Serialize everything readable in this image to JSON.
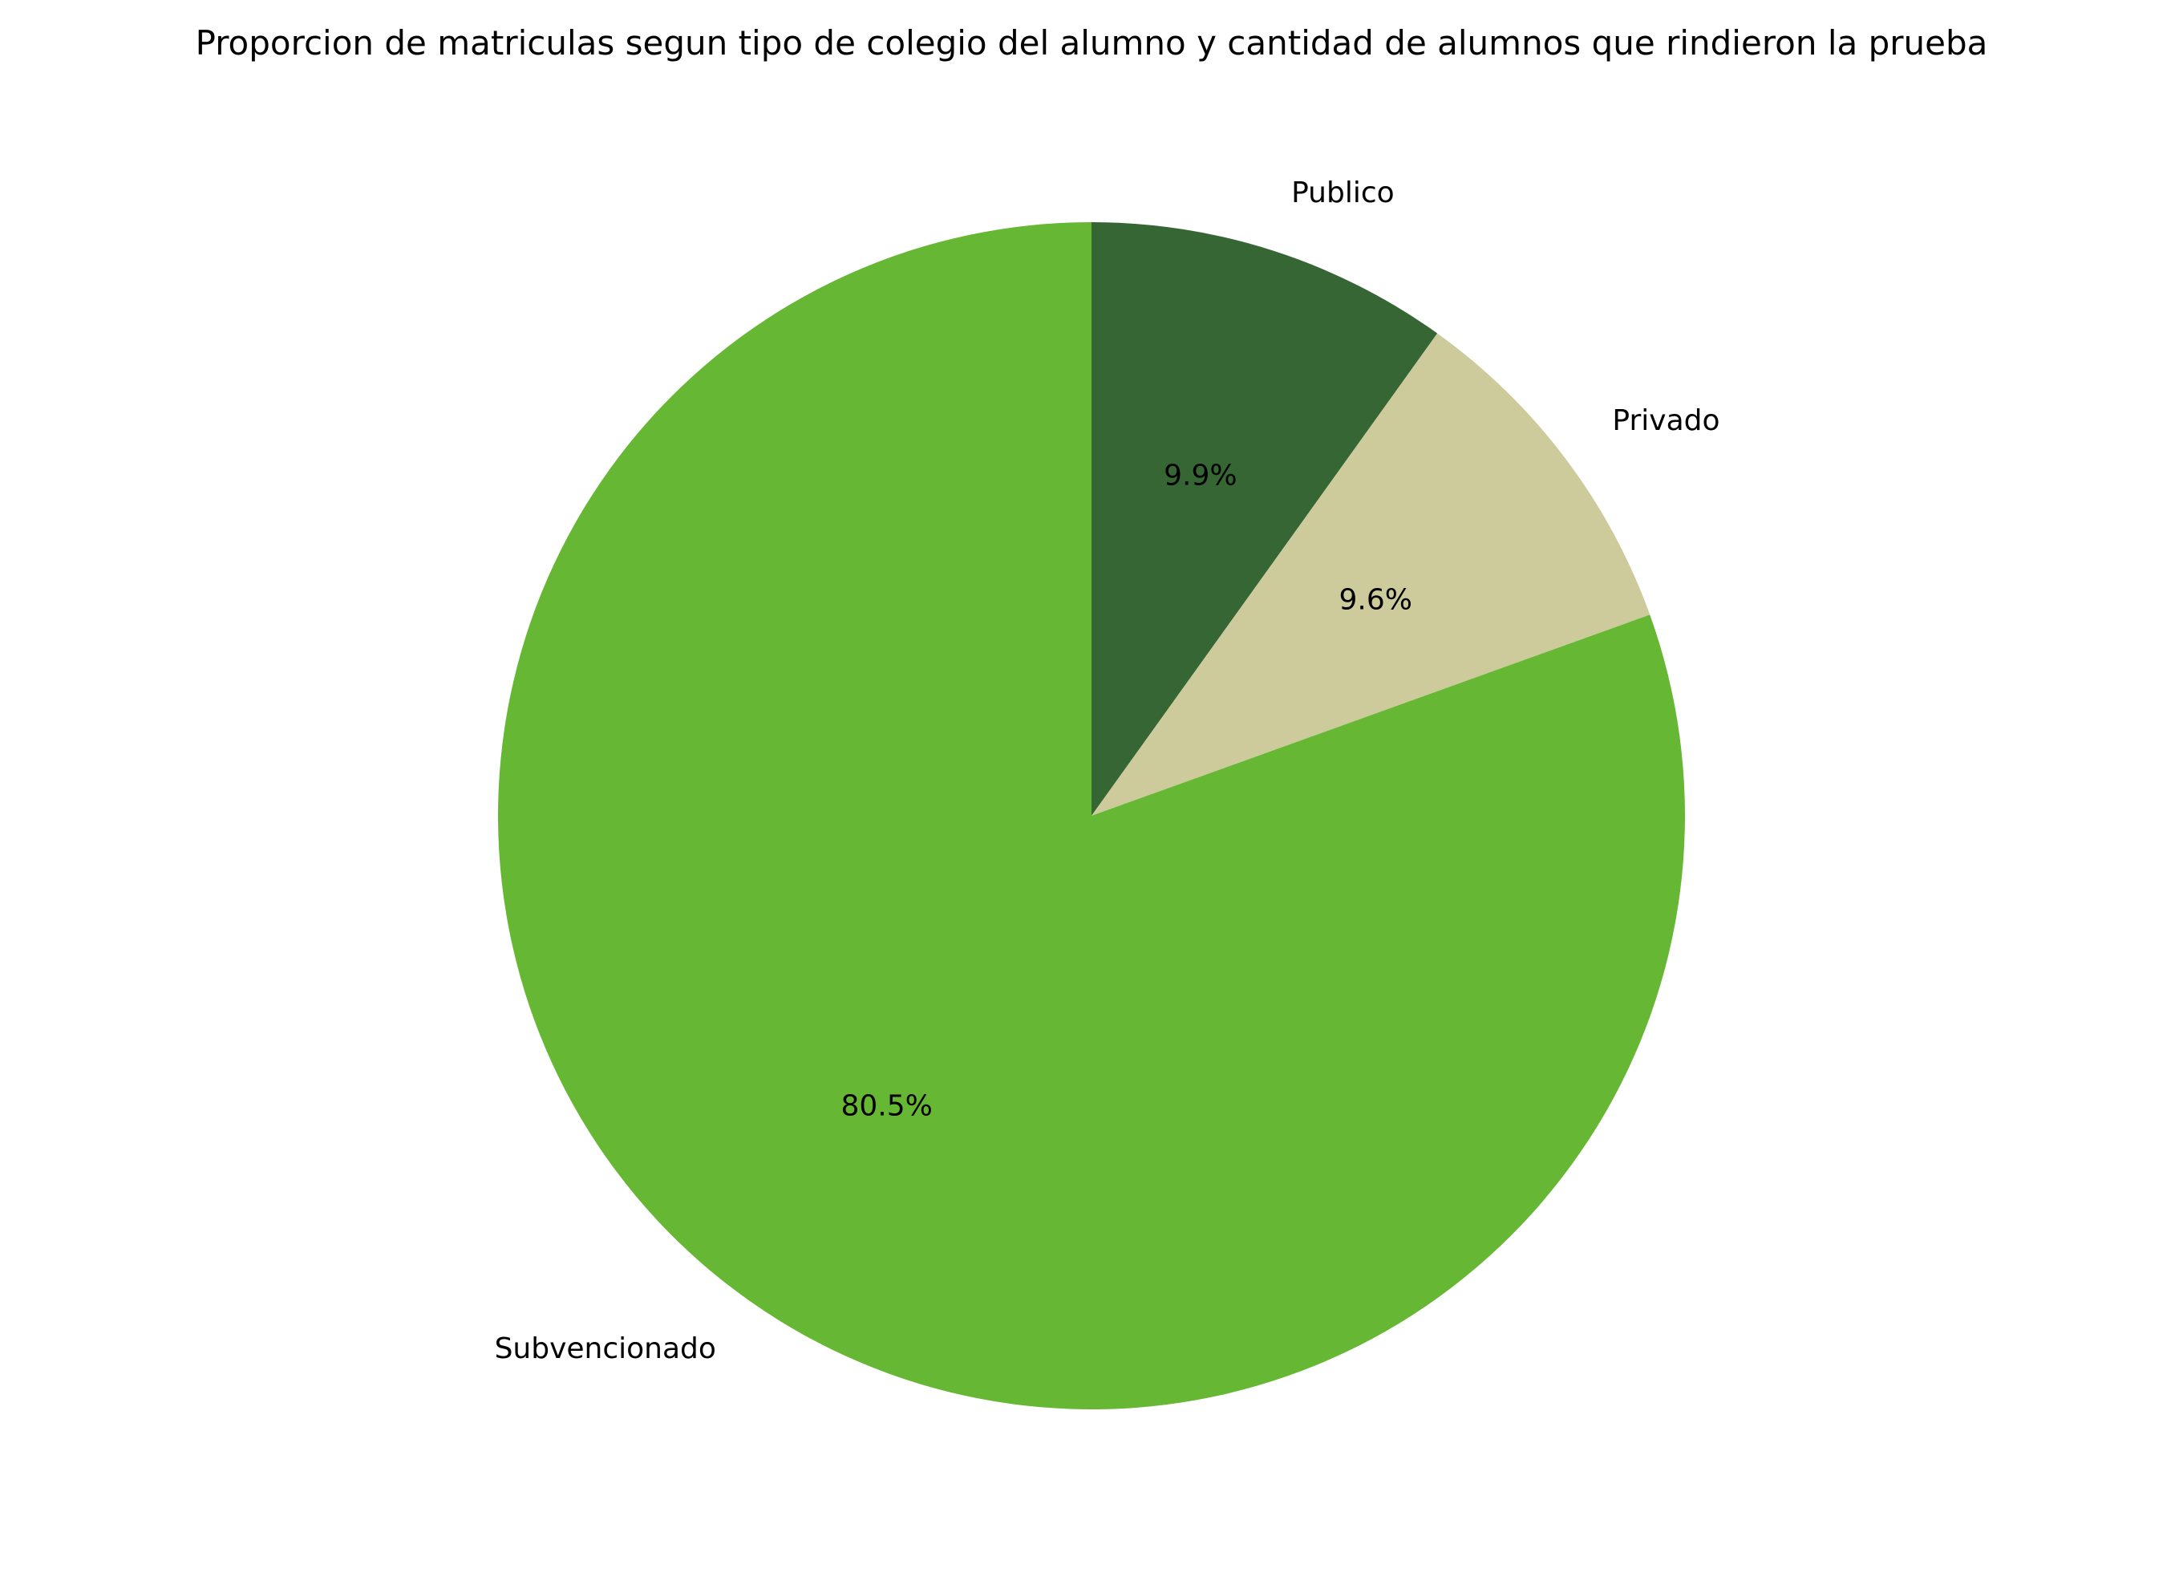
{
  "chart_data": {
    "type": "pie",
    "title": "Proporcion de matriculas segun tipo de colegio del alumno y cantidad de alumnos que rindieron la prueba",
    "start_angle_deg": 90,
    "direction": "clockwise",
    "slices": [
      {
        "label": "Publico",
        "value": 9.9,
        "display": "9.9%",
        "color": "#356634"
      },
      {
        "label": "Privado",
        "value": 9.6,
        "display": "9.6%",
        "color": "#cdca9b"
      },
      {
        "label": "Subvencionado",
        "value": 80.5,
        "display": "80.5%",
        "color": "#66b733"
      }
    ]
  }
}
